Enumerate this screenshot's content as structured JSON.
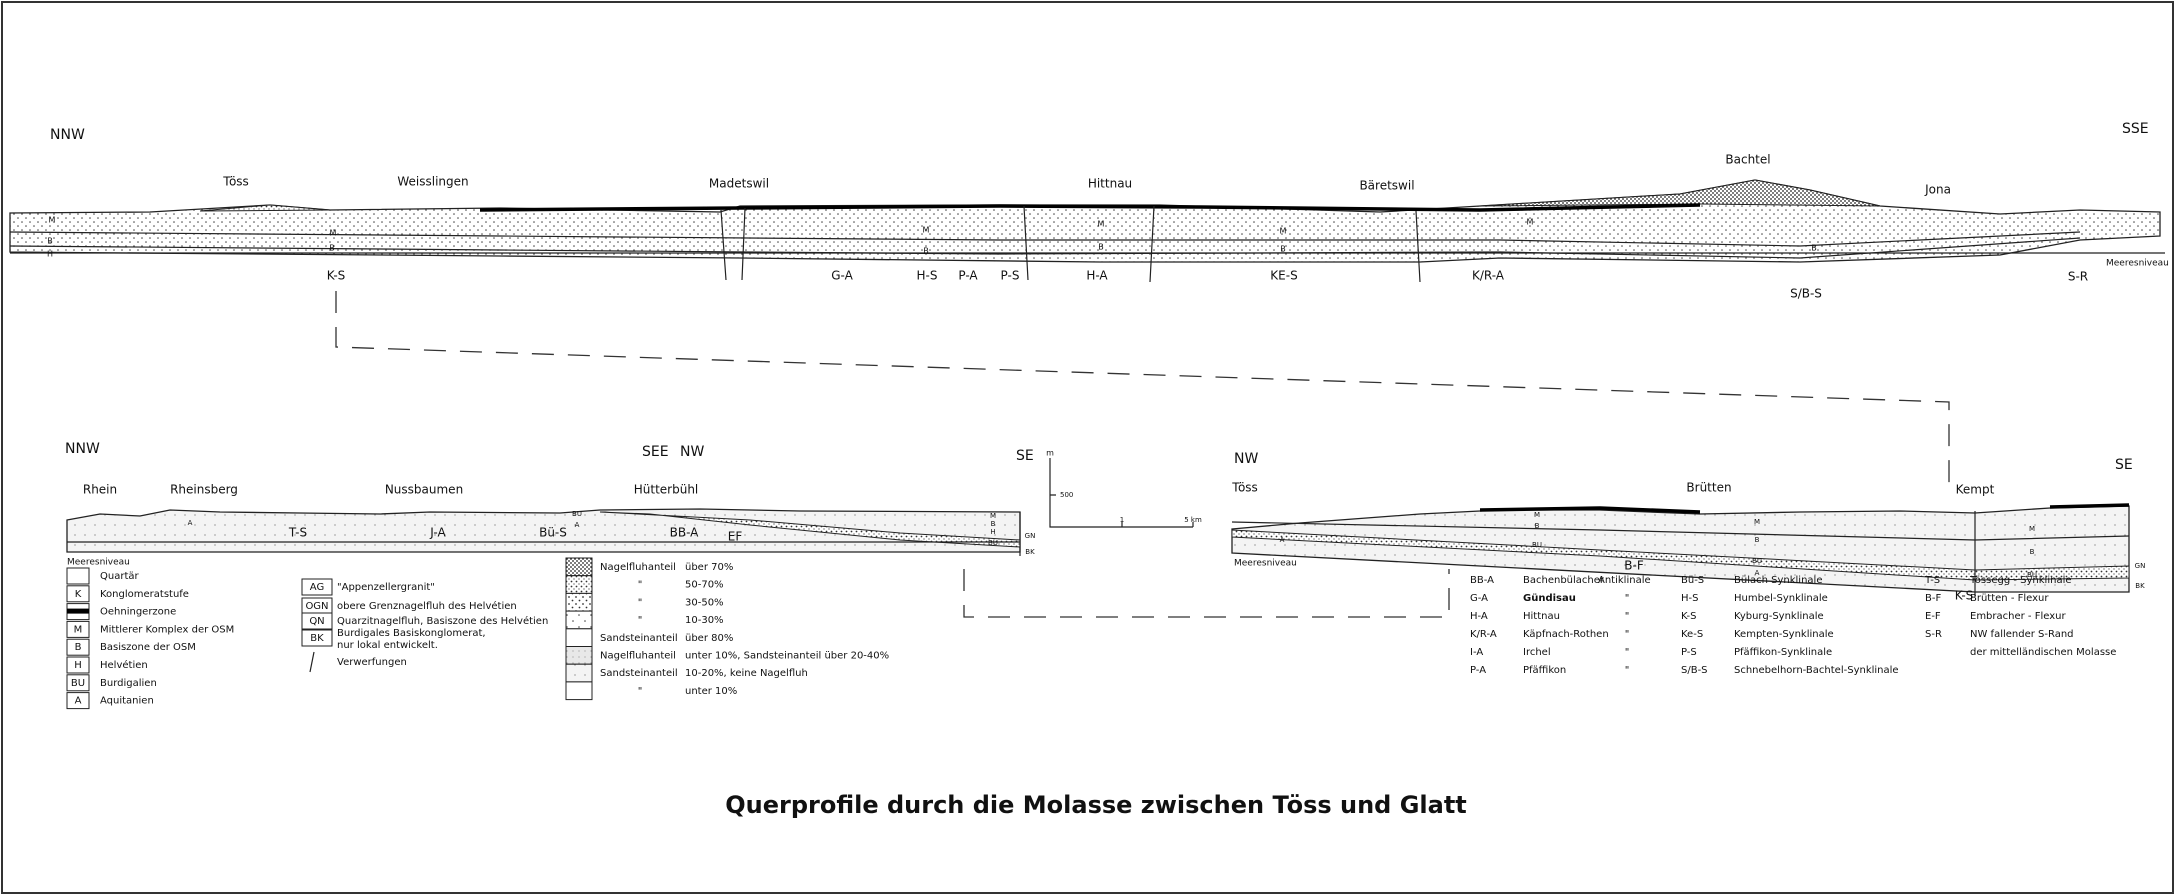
{
  "title": "Querprofile durch die Molasse zwischen Töss und Glatt",
  "profile_top": {
    "ends": [
      "NNW",
      "SSE"
    ],
    "places": [
      "Töss",
      "Weisslingen",
      "Madetswil",
      "Hittnau",
      "Bäretswil",
      "Bachtel",
      "Jona"
    ],
    "structures": [
      "K-S",
      "G-A",
      "H-S",
      "P-A",
      "P-S",
      "H-A",
      "KE-S",
      "K/R-A",
      "S/B-S",
      "S-R"
    ],
    "sea_level": "Meeresniveau",
    "layer_marks": [
      "M",
      "B",
      "H",
      "M",
      "B",
      "M",
      "B",
      "M",
      "B",
      "M",
      "B",
      "M",
      "B"
    ]
  },
  "profile_left": {
    "ends": [
      "NNW",
      "SEE",
      "NW",
      "SE"
    ],
    "places": [
      "Rhein",
      "Rheinsberg",
      "Nussbaumen",
      "Hütterbühl"
    ],
    "structures": [
      "T-S",
      "J-A",
      "Bü-S",
      "BB-A",
      "EF"
    ],
    "sea_level": "Meeresniveau",
    "layer_marks": [
      "A",
      "BU",
      "A",
      "M",
      "B",
      "H",
      "GN",
      "BU",
      "BK"
    ]
  },
  "scale_bar": {
    "unit": "m",
    "height_label": "500",
    "distance_labels": [
      "1",
      "5 km"
    ]
  },
  "profile_right": {
    "ends": [
      "NW",
      "SE"
    ],
    "places": [
      "Töss",
      "Brütten",
      "Kempt"
    ],
    "structures": [
      "B-F",
      "K-S"
    ],
    "sea_level": "Meeresniveau",
    "layer_marks": [
      "M",
      "B",
      "BU",
      "A",
      "M",
      "B",
      "BU",
      "A",
      "M",
      "B",
      "BU",
      "GN",
      "BK"
    ]
  },
  "legend_units": [
    {
      "label": "Quartär"
    },
    {
      "code": "K",
      "label": "Konglomeratstufe"
    },
    {
      "label": "Oehningerzone"
    },
    {
      "code": "M",
      "label": "Mittlerer Komplex der OSM"
    },
    {
      "code": "B",
      "label": "Basiszone der OSM"
    },
    {
      "code": "H",
      "label": "Helvétien"
    },
    {
      "code": "BU",
      "label": "Burdigalien"
    },
    {
      "code": "A",
      "label": "Aquitanien"
    }
  ],
  "legend_special": [
    {
      "code": "AG",
      "label": [
        "\"Appenzellergranit\""
      ]
    },
    {
      "code": "OGN",
      "label": [
        "obere Grenznagelfluh des Helvétien"
      ]
    },
    {
      "code": "QN",
      "label": [
        "Quarzitnagelfluh, Basiszone des Helvétien"
      ]
    },
    {
      "code": "BK",
      "label": [
        "Burdigales Basiskonglomerat,",
        "nur lokal entwickelt."
      ]
    }
  ],
  "faults": "Verwerfungen",
  "legend_lithology": [
    {
      "label": "Nagelfluhanteil",
      "range": "über 70%"
    },
    {
      "label": "\"",
      "range": "50-70%"
    },
    {
      "label": "\"",
      "range": "30-50%"
    },
    {
      "label": "\"",
      "range": "10-30%"
    },
    {
      "label": "Sandsteinanteil",
      "range": "über 80%"
    },
    {
      "label": "Nagelfluhanteil",
      "range": "unter 10%, Sandsteinanteil über 20-40%"
    },
    {
      "label": "Sandsteinanteil",
      "range": "10-20%, keine Nagelfluh"
    },
    {
      "label": "\"",
      "range": "unter 10%"
    }
  ],
  "abbreviations_anticlines": [
    {
      "code": "BB-A",
      "name": "Bachenbülacher",
      "kind": "Antiklinale"
    },
    {
      "code": "G-A",
      "name": "Gündisau",
      "kind": "\""
    },
    {
      "code": "H-A",
      "name": "Hittnau",
      "kind": "\""
    },
    {
      "code": "K/R-A",
      "name": "Käpfnach-Rothen",
      "kind": "\""
    },
    {
      "code": "I-A",
      "name": "Irchel",
      "kind": "\""
    },
    {
      "code": "P-A",
      "name": "Pfäffikon",
      "kind": "\""
    }
  ],
  "abbreviations_synclines": [
    {
      "code": "Bü-S",
      "name": "Bülach Synklinale"
    },
    {
      "code": "H-S",
      "name": "Humbel-Synklinale"
    },
    {
      "code": "K-S",
      "name": "Kyburg-Synklinale"
    },
    {
      "code": "Ke-S",
      "name": "Kempten-Synklinale"
    },
    {
      "code": "P-S",
      "name": "Pfäffikon-Synklinale"
    },
    {
      "code": "S/B-S",
      "name": "Schnebelhorn-Bachtel-Synklinale"
    }
  ],
  "abbreviations_other": [
    {
      "code": "T-S",
      "name": [
        "Tössegg - Synklinale"
      ]
    },
    {
      "code": "B-F",
      "name": [
        "Brütten - Flexur"
      ]
    },
    {
      "code": "E-F",
      "name": [
        "Embracher - Flexur"
      ]
    },
    {
      "code": "S-R",
      "name": [
        "NW fallender S-Rand",
        "der mittelländischen Molasse"
      ]
    }
  ]
}
